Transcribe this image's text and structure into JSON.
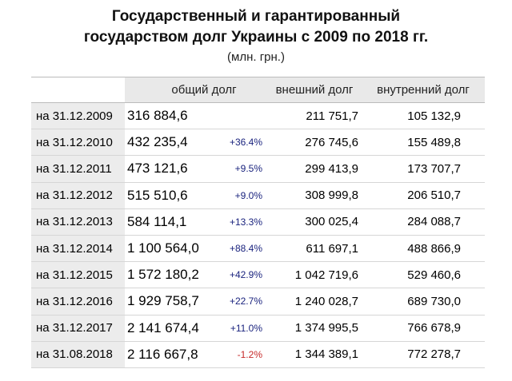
{
  "title_line1": "Государственный и гарантированный",
  "title_line2": "государством долг Украины с 2009 по 2018 гг.",
  "units": "(млн. грн.)",
  "headers": {
    "date": "",
    "total": "общий долг",
    "external": "внешний долг",
    "internal": "внутренний долг"
  },
  "rows": [
    {
      "date": "на 31.12.2009",
      "total": "316 884,6",
      "change": "",
      "external": "211 751,7",
      "internal": "105 132,9"
    },
    {
      "date": "на 31.12.2010",
      "total": "432 235,4",
      "change": "+36.4%",
      "external": "276 745,6",
      "internal": "155 489,8"
    },
    {
      "date": "на 31.12.2011",
      "total": "473 121,6",
      "change": "+9.5%",
      "external": "299 413,9",
      "internal": "173 707,7"
    },
    {
      "date": "на 31.12.2012",
      "total": "515 510,6",
      "change": "+9.0%",
      "external": "308 999,8",
      "internal": "206 510,7"
    },
    {
      "date": "на 31.12.2013",
      "total": "584 114,1",
      "change": "+13.3%",
      "external": "300 025,4",
      "internal": "284 088,7"
    },
    {
      "date": "на 31.12.2014",
      "total": "1 100 564,0",
      "change": "+88.4%",
      "external": "611 697,1",
      "internal": "488 866,9"
    },
    {
      "date": "на 31.12.2015",
      "total": "1 572 180,2",
      "change": "+42.9%",
      "external": "1 042 719,6",
      "internal": "529 460,6"
    },
    {
      "date": "на 31.12.2016",
      "total": "1 929 758,7",
      "change": "+22.7%",
      "external": "1 240 028,7",
      "internal": "689 730,0"
    },
    {
      "date": "на 31.12.2017",
      "total": "2 141 674,4",
      "change": "+11.0%",
      "external": "1 374 995,5",
      "internal": "766 678,9"
    },
    {
      "date": "на 31.08.2018",
      "total": "2 116 667,8",
      "change": "-1.2%",
      "external": "1 344 389,1",
      "internal": "772 278,7"
    }
  ],
  "colors": {
    "positive_change": "#1a237e",
    "negative_change": "#c62828",
    "header_bg": "#e9e9e9",
    "date_bg": "#ececec"
  }
}
